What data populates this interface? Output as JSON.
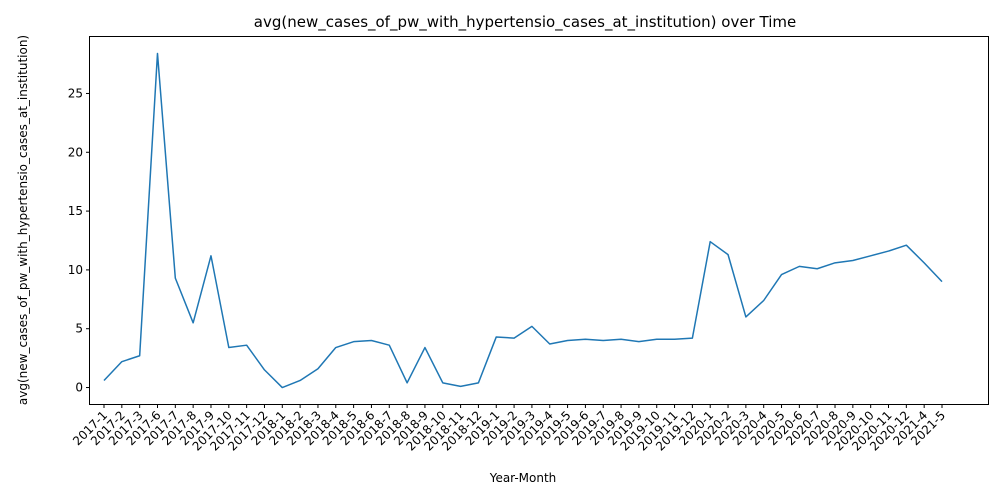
{
  "chart_data": {
    "type": "line",
    "title": "avg(new_cases_of_pw_with_hypertensio_cases_at_institution) over Time",
    "xlabel": "Year-Month",
    "ylabel": "avg(new_cases_of_pw_with_hypertensio_cases_at_institution)",
    "ylim": [
      -1.4,
      29.8
    ],
    "yticks": [
      0,
      5,
      10,
      15,
      20,
      25
    ],
    "grid": false,
    "legend": "none",
    "line_color": "#1f77b4",
    "categories": [
      "2017-1",
      "2017-2",
      "2017-3",
      "2017-6",
      "2017-7",
      "2017-8",
      "2017-9",
      "2017-10",
      "2017-11",
      "2017-12",
      "2018-1",
      "2018-2",
      "2018-3",
      "2018-4",
      "2018-5",
      "2018-6",
      "2018-7",
      "2018-8",
      "2018-9",
      "2018-10",
      "2018-11",
      "2018-12",
      "2019-1",
      "2019-2",
      "2019-3",
      "2019-4",
      "2019-5",
      "2019-6",
      "2019-7",
      "2019-8",
      "2019-9",
      "2019-10",
      "2019-11",
      "2019-12",
      "2020-1",
      "2020-2",
      "2020-3",
      "2020-4",
      "2020-5",
      "2020-6",
      "2020-7",
      "2020-8",
      "2020-9",
      "2020-10",
      "2020-11",
      "2020-12",
      "2021-4",
      "2021-5"
    ],
    "values": [
      0.6,
      2.2,
      2.7,
      28.4,
      9.3,
      5.5,
      11.2,
      3.4,
      3.6,
      1.5,
      0.0,
      0.6,
      1.6,
      3.4,
      3.9,
      4.0,
      3.6,
      0.4,
      3.4,
      0.4,
      0.1,
      0.4,
      4.3,
      4.2,
      5.2,
      3.7,
      4.0,
      4.1,
      4.0,
      4.1,
      3.9,
      4.1,
      4.1,
      4.2,
      12.4,
      11.3,
      6.0,
      7.4,
      9.6,
      10.3,
      10.1,
      10.6,
      10.8,
      11.2,
      11.6,
      12.1,
      10.6,
      9.0
    ]
  }
}
